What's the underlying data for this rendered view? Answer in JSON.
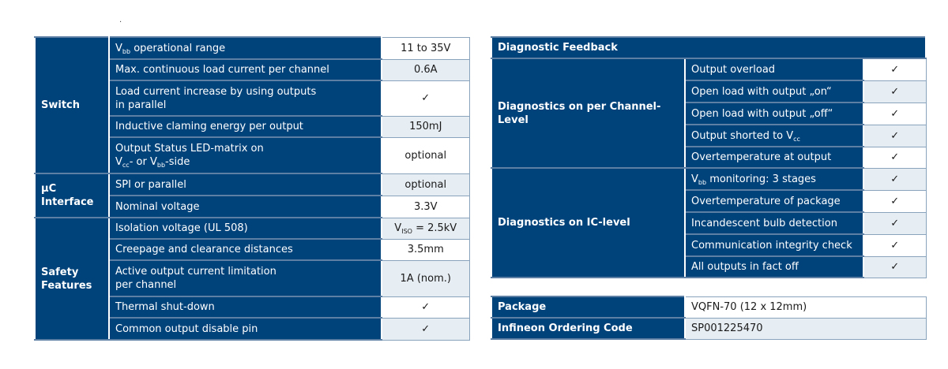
{
  "left_table": {
    "groups": [
      {
        "label": "Switch",
        "rows": [
          {
            "label": [
              {
                "t": "V"
              },
              {
                "sub": "bb"
              },
              {
                "t": " operational range"
              }
            ],
            "value": [
              {
                "t": "11 to 35V"
              }
            ]
          },
          {
            "label": [
              {
                "t": "Max. continuous load current per channel"
              }
            ],
            "value": [
              {
                "t": "0.6A"
              }
            ]
          },
          {
            "label": [
              {
                "t": "Load current increase by using outputs"
              },
              {
                "br": 1
              },
              {
                "t": "in parallel"
              }
            ],
            "value": [
              {
                "t": "✓"
              }
            ]
          },
          {
            "label": [
              {
                "t": "Inductive claming energy per output"
              }
            ],
            "value": [
              {
                "t": "150mJ"
              }
            ]
          },
          {
            "label": [
              {
                "t": "Output Status LED-matrix on"
              },
              {
                "br": 1
              },
              {
                "t": "V"
              },
              {
                "sub": "cc"
              },
              {
                "t": "- or V"
              },
              {
                "sub": "bb"
              },
              {
                "t": "-side"
              }
            ],
            "value": [
              {
                "t": "optional"
              }
            ]
          }
        ]
      },
      {
        "label": "µC Interface",
        "rows": [
          {
            "label": [
              {
                "t": "SPI or parallel"
              }
            ],
            "value": [
              {
                "t": "optional"
              }
            ]
          },
          {
            "label": [
              {
                "t": "Nominal voltage"
              }
            ],
            "value": [
              {
                "t": "3.3V"
              }
            ]
          }
        ]
      },
      {
        "label": "Safety Features",
        "rows": [
          {
            "label": [
              {
                "t": "Isolation voltage (UL 508)"
              }
            ],
            "value": [
              {
                "t": "V"
              },
              {
                "sub": "ISO"
              },
              {
                "t": " = 2.5kV"
              }
            ]
          },
          {
            "label": [
              {
                "t": "Creepage and clearance distances"
              }
            ],
            "value": [
              {
                "t": "3.5mm"
              }
            ]
          },
          {
            "label": [
              {
                "t": "Active output current limitation"
              },
              {
                "br": 1
              },
              {
                "t": "per channel"
              }
            ],
            "value": [
              {
                "t": "1A (nom.)"
              }
            ]
          },
          {
            "label": [
              {
                "t": "Thermal shut-down"
              }
            ],
            "value": [
              {
                "t": "✓"
              }
            ]
          },
          {
            "label": [
              {
                "t": "Common output disable pin"
              }
            ],
            "value": [
              {
                "t": "✓"
              }
            ]
          }
        ]
      }
    ]
  },
  "right_table": {
    "title": "Diagnostic Feedback",
    "groups": [
      {
        "label": "Diagnostics on per Channel-Level",
        "rows": [
          {
            "label": [
              {
                "t": "Output overload"
              }
            ],
            "value": [
              {
                "t": "✓"
              }
            ]
          },
          {
            "label": [
              {
                "t": "Open load with output „on“"
              }
            ],
            "value": [
              {
                "t": "✓"
              }
            ]
          },
          {
            "label": [
              {
                "t": "Open load with output „off“"
              }
            ],
            "value": [
              {
                "t": "✓"
              }
            ]
          },
          {
            "label": [
              {
                "t": "Output shorted to V"
              },
              {
                "sub": "cc"
              }
            ],
            "value": [
              {
                "t": "✓"
              }
            ]
          },
          {
            "label": [
              {
                "t": "Overtemperature at output"
              }
            ],
            "value": [
              {
                "t": "✓"
              }
            ]
          }
        ]
      },
      {
        "label": "Diagnostics on IC-level",
        "rows": [
          {
            "label": [
              {
                "t": "V"
              },
              {
                "sub": "bb"
              },
              {
                "t": " monitoring: 3 stages"
              }
            ],
            "value": [
              {
                "t": "✓"
              }
            ]
          },
          {
            "label": [
              {
                "t": "Overtemperature of package"
              }
            ],
            "value": [
              {
                "t": "✓"
              }
            ]
          },
          {
            "label": [
              {
                "t": "Incandescent bulb detection"
              }
            ],
            "value": [
              {
                "t": "✓"
              }
            ]
          },
          {
            "label": [
              {
                "t": "Communication integrity check"
              }
            ],
            "value": [
              {
                "t": "✓"
              }
            ]
          },
          {
            "label": [
              {
                "t": "All outputs in fact off"
              }
            ],
            "value": [
              {
                "t": "✓"
              }
            ]
          }
        ]
      }
    ]
  },
  "package_table": [
    {
      "label": "Package",
      "value": "VQFN-70 (12 x 12mm)"
    },
    {
      "label": "Infineon Ordering Code",
      "value": "SP001225470"
    }
  ],
  "colors": {
    "header": "#00427a",
    "alt_cell": "#e6edf3"
  }
}
